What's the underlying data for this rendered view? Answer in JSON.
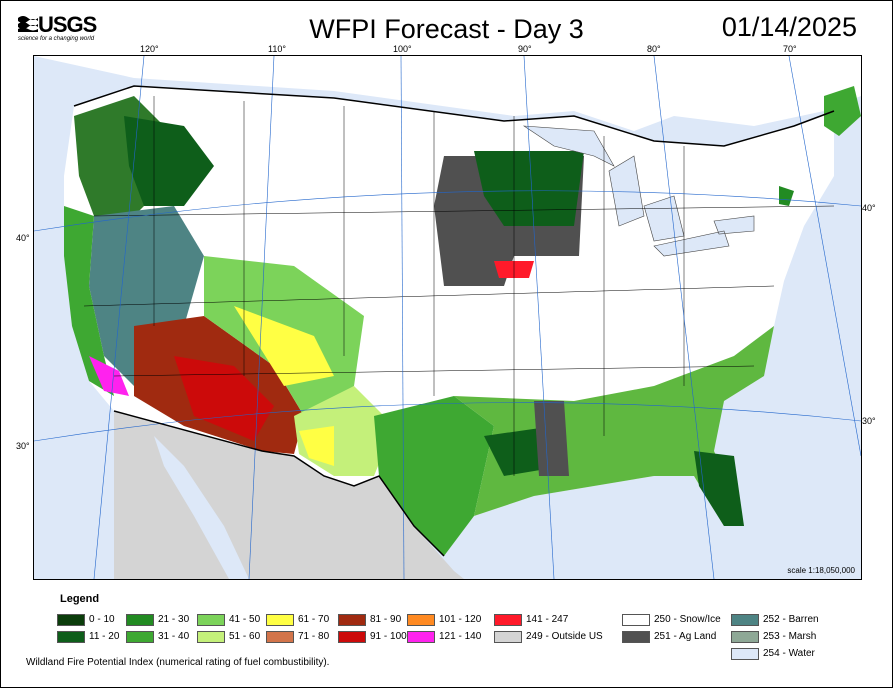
{
  "logo": {
    "text": "USGS",
    "tagline": "science for a changing world"
  },
  "title": "WFPI Forecast - Day 3",
  "date": "01/14/2025",
  "scale_text": "scale 1:18,050,000",
  "longitude_ticks": [
    "120°",
    "110°",
    "100°",
    "90°",
    "80°",
    "70°"
  ],
  "latitude_ticks_left": [
    "40°",
    "30°"
  ],
  "latitude_ticks_right": [
    "40°",
    "30°"
  ],
  "legend": {
    "title": "Legend",
    "items": [
      {
        "label": "0 - 10",
        "color": "#0b3d0b"
      },
      {
        "label": "11 - 20",
        "color": "#0e5e1a"
      },
      {
        "label": "21 - 30",
        "color": "#228b22"
      },
      {
        "label": "31 - 40",
        "color": "#3ea832"
      },
      {
        "label": "41 - 50",
        "color": "#7cd35a"
      },
      {
        "label": "51 - 60",
        "color": "#c4f07a"
      },
      {
        "label": "61 - 70",
        "color": "#ffff44"
      },
      {
        "label": "71 - 80",
        "color": "#d2744a"
      },
      {
        "label": "81 - 90",
        "color": "#a02a10"
      },
      {
        "label": "91 - 100",
        "color": "#cc0a0a"
      },
      {
        "label": "101 - 120",
        "color": "#ff8a22"
      },
      {
        "label": "121 - 140",
        "color": "#ff22ee"
      },
      {
        "label": "141 - 247",
        "color": "#ff1a2a"
      },
      {
        "label": "249 - Outside US",
        "color": "#d4d4d4"
      },
      {
        "label": "250 - Snow/Ice",
        "color": "#ffffff"
      },
      {
        "label": "251 - Ag Land",
        "color": "#505050"
      },
      {
        "label": "252 - Barren",
        "color": "#4e8484"
      },
      {
        "label": "253 - Marsh",
        "color": "#8ea896"
      },
      {
        "label": "254 - Water",
        "color": "#dde8f8"
      }
    ]
  },
  "caption": "Wildland Fire Potential Index (numerical rating of fuel combustibility)."
}
